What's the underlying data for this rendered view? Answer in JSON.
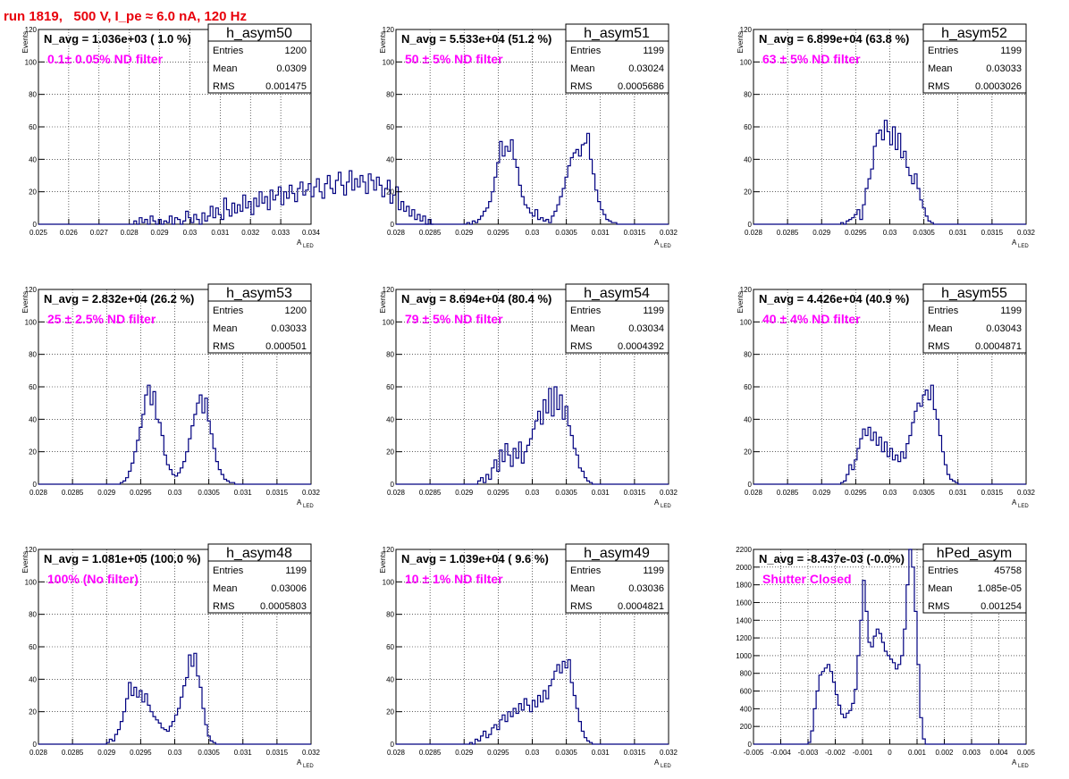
{
  "title": "run 1819,   500 V, I_pe ≈ 6.0 nA, 120 Hz",
  "colors": {
    "line": "#000080",
    "annotation": "#ff00ff",
    "title": "#e8000b",
    "grid": "#000000"
  },
  "chart_data": [
    {
      "type": "bar",
      "name": "h_asym50",
      "header": "N_avg = 1.036e+03 ( 1.0 %)",
      "annotation": "0.1± 0.05% ND filter",
      "stats": {
        "entries": "1200",
        "mean": "0.0309",
        "rms": "0.001475"
      },
      "xlim": [
        0.025,
        0.034
      ],
      "ylim": [
        0,
        120
      ],
      "xticks": [
        "0.025",
        "0.026",
        "0.027",
        "0.028",
        "0.029",
        "0.03",
        "0.031",
        "0.032",
        "0.033",
        "0.034"
      ],
      "yticks": [
        "0",
        "20",
        "40",
        "60",
        "80",
        "100",
        "120"
      ],
      "ylabel": "Events",
      "xlabel": "A",
      "xlabel_sub": "LED",
      "binning": {
        "start": 0.025,
        "width": 9e-05
      },
      "values": [
        0,
        0,
        0,
        0,
        0,
        0,
        0,
        0,
        0,
        0,
        0,
        0,
        0,
        0,
        0,
        0,
        0,
        0,
        0,
        0,
        0,
        0,
        0,
        0,
        0,
        0,
        0,
        0,
        0,
        0,
        0,
        0,
        0,
        0,
        0,
        2,
        0,
        4,
        1,
        3,
        0,
        5,
        2,
        0,
        3,
        0,
        2,
        1,
        5,
        0,
        4,
        3,
        0,
        2,
        8,
        4,
        1,
        6,
        3,
        0,
        7,
        2,
        5,
        11,
        4,
        10,
        6,
        3,
        16,
        9,
        5,
        13,
        7,
        12,
        8,
        18,
        10,
        14,
        6,
        16,
        11,
        20,
        13,
        17,
        9,
        21,
        15,
        18,
        23,
        12,
        20,
        16,
        24,
        19,
        14,
        22,
        26,
        18,
        21,
        25,
        17,
        23,
        28,
        20,
        16,
        25,
        30,
        22,
        19,
        27,
        32,
        24,
        18,
        26,
        33,
        21,
        28,
        23,
        30,
        26,
        19,
        31,
        27,
        21,
        29,
        24,
        17,
        22,
        27,
        13,
        18,
        23,
        9,
        14,
        8,
        11,
        5,
        9,
        3,
        6,
        2,
        5,
        0,
        3,
        0
      ]
    },
    {
      "type": "bar",
      "name": "h_asym51",
      "header": "N_avg = 5.533e+04 (51.2 %)",
      "annotation": "50 ± 5% ND filter",
      "stats": {
        "entries": "1199",
        "mean": "0.03024",
        "rms": "0.0005686"
      },
      "xlim": [
        0.028,
        0.032
      ],
      "ylim": [
        0,
        120
      ],
      "xticks": [
        "0.028",
        "0.0285",
        "0.029",
        "0.0295",
        "0.03",
        "0.0305",
        "0.031",
        "0.0315",
        "0.032"
      ],
      "yticks": [
        "0",
        "20",
        "40",
        "60",
        "80",
        "100",
        "120"
      ],
      "ylabel": "Events",
      "xlabel": "A",
      "xlabel_sub": "LED",
      "binning": {
        "start": 0.028,
        "width": 4e-05
      },
      "values": [
        0,
        0,
        0,
        0,
        0,
        0,
        0,
        0,
        0,
        0,
        0,
        0,
        0,
        0,
        0,
        0,
        0,
        0,
        0,
        0,
        0,
        0,
        0,
        0,
        0,
        0,
        1,
        0,
        2,
        1,
        3,
        5,
        8,
        10,
        14,
        20,
        29,
        38,
        51,
        42,
        48,
        45,
        52,
        40,
        35,
        24,
        17,
        12,
        10,
        7,
        5,
        9,
        3,
        4,
        2,
        3,
        1,
        5,
        8,
        12,
        17,
        22,
        29,
        36,
        41,
        44,
        46,
        42,
        49,
        50,
        56,
        40,
        31,
        21,
        14,
        9,
        6,
        3,
        2,
        1,
        1,
        0,
        0,
        0,
        0,
        0,
        0,
        0,
        0,
        0,
        0,
        0,
        0,
        0,
        0,
        0,
        0,
        0,
        0,
        0
      ]
    },
    {
      "type": "bar",
      "name": "h_asym52",
      "header": "N_avg = 6.899e+04 (63.8 %)",
      "annotation": "63 ± 5% ND filter",
      "stats": {
        "entries": "1199",
        "mean": "0.03033",
        "rms": "0.0003026"
      },
      "xlim": [
        0.028,
        0.032
      ],
      "ylim": [
        0,
        120
      ],
      "xticks": [
        "0.028",
        "0.0285",
        "0.029",
        "0.0295",
        "0.03",
        "0.0305",
        "0.031",
        "0.0315",
        "0.032"
      ],
      "yticks": [
        "0",
        "20",
        "40",
        "60",
        "80",
        "100",
        "120"
      ],
      "ylabel": "Events",
      "xlabel": "A",
      "xlabel_sub": "LED",
      "binning": {
        "start": 0.028,
        "width": 4e-05
      },
      "values": [
        0,
        0,
        0,
        0,
        0,
        0,
        0,
        0,
        0,
        0,
        0,
        0,
        0,
        0,
        0,
        0,
        0,
        0,
        0,
        0,
        0,
        0,
        0,
        0,
        0,
        0,
        0,
        0,
        0,
        0,
        0,
        0,
        1,
        0,
        2,
        3,
        4,
        6,
        9,
        3,
        12,
        22,
        28,
        34,
        48,
        56,
        58,
        52,
        64,
        57,
        49,
        60,
        46,
        56,
        41,
        45,
        35,
        30,
        25,
        31,
        22,
        15,
        10,
        5,
        2,
        1,
        0,
        0,
        0,
        0,
        0,
        0,
        0,
        0,
        0,
        0,
        0,
        0,
        0,
        0,
        0,
        0,
        0,
        0,
        0,
        0,
        0,
        0,
        0,
        0,
        0,
        0,
        0,
        0,
        0,
        0,
        0,
        0,
        0,
        0
      ]
    },
    {
      "type": "bar",
      "name": "h_asym53",
      "header": "N_avg = 2.832e+04 (26.2 %)",
      "annotation": "25 ± 2.5% ND filter",
      "stats": {
        "entries": "1200",
        "mean": "0.03033",
        "rms": "0.000501"
      },
      "xlim": [
        0.028,
        0.032
      ],
      "ylim": [
        0,
        120
      ],
      "xticks": [
        "0.028",
        "0.0285",
        "0.029",
        "0.0295",
        "0.03",
        "0.0305",
        "0.031",
        "0.0315",
        "0.032"
      ],
      "yticks": [
        "0",
        "20",
        "40",
        "60",
        "80",
        "100",
        "120"
      ],
      "ylabel": "Events",
      "xlabel": "A",
      "xlabel_sub": "LED",
      "binning": {
        "start": 0.028,
        "width": 4e-05
      },
      "values": [
        0,
        0,
        0,
        0,
        0,
        0,
        0,
        0,
        0,
        0,
        0,
        0,
        0,
        0,
        0,
        0,
        0,
        0,
        0,
        0,
        0,
        0,
        0,
        0,
        0,
        0,
        0,
        0,
        0,
        0,
        1,
        2,
        4,
        8,
        13,
        20,
        27,
        35,
        43,
        55,
        61,
        49,
        57,
        40,
        38,
        30,
        18,
        12,
        9,
        6,
        5,
        7,
        10,
        14,
        20,
        28,
        36,
        43,
        50,
        55,
        44,
        53,
        39,
        31,
        22,
        14,
        9,
        6,
        3,
        2,
        1,
        1,
        0,
        0,
        0,
        0,
        0,
        0,
        0,
        0,
        0,
        0,
        0,
        0,
        0,
        0,
        0,
        0,
        0,
        0,
        0,
        0,
        0,
        0,
        0,
        0,
        0,
        0,
        0,
        0
      ]
    },
    {
      "type": "bar",
      "name": "h_asym54",
      "header": "N_avg = 8.694e+04 (80.4 %)",
      "annotation": "79 ± 5% ND filter",
      "stats": {
        "entries": "1199",
        "mean": "0.03034",
        "rms": "0.0004392"
      },
      "xlim": [
        0.028,
        0.032
      ],
      "ylim": [
        0,
        120
      ],
      "xticks": [
        "0.028",
        "0.0285",
        "0.029",
        "0.0295",
        "0.03",
        "0.0305",
        "0.031",
        "0.0315",
        "0.032"
      ],
      "yticks": [
        "0",
        "20",
        "40",
        "60",
        "80",
        "100",
        "120"
      ],
      "ylabel": "Events",
      "xlabel": "A",
      "xlabel_sub": "LED",
      "binning": {
        "start": 0.028,
        "width": 4e-05
      },
      "values": [
        0,
        0,
        0,
        0,
        0,
        0,
        0,
        0,
        0,
        0,
        0,
        0,
        0,
        0,
        0,
        0,
        0,
        0,
        0,
        0,
        0,
        0,
        0,
        0,
        0,
        0,
        0,
        0,
        0,
        0,
        2,
        4,
        1,
        6,
        3,
        10,
        15,
        8,
        21,
        14,
        25,
        18,
        11,
        22,
        16,
        26,
        13,
        20,
        24,
        28,
        34,
        39,
        45,
        37,
        52,
        44,
        59,
        42,
        60,
        46,
        55,
        40,
        48,
        36,
        30,
        22,
        18,
        10,
        8,
        4,
        2,
        1,
        0,
        0,
        0,
        0,
        0,
        0,
        0,
        0,
        0,
        0,
        0,
        0,
        0,
        0,
        0,
        0,
        0,
        0,
        0,
        0,
        0,
        0,
        0,
        0,
        0,
        0,
        0,
        0
      ]
    },
    {
      "type": "bar",
      "name": "h_asym55",
      "header": "N_avg = 4.426e+04 (40.9 %)",
      "annotation": "40 ± 4% ND filter",
      "stats": {
        "entries": "1199",
        "mean": "0.03043",
        "rms": "0.0004871"
      },
      "xlim": [
        0.028,
        0.032
      ],
      "ylim": [
        0,
        120
      ],
      "xticks": [
        "0.028",
        "0.0285",
        "0.029",
        "0.0295",
        "0.03",
        "0.0305",
        "0.031",
        "0.0315",
        "0.032"
      ],
      "yticks": [
        "0",
        "20",
        "40",
        "60",
        "80",
        "100",
        "120"
      ],
      "ylabel": "Events",
      "xlabel": "A",
      "xlabel_sub": "LED",
      "binning": {
        "start": 0.028,
        "width": 4e-05
      },
      "values": [
        0,
        0,
        0,
        0,
        0,
        0,
        0,
        0,
        0,
        0,
        0,
        0,
        0,
        0,
        0,
        0,
        0,
        0,
        0,
        0,
        0,
        0,
        0,
        0,
        0,
        0,
        0,
        0,
        0,
        0,
        0,
        0,
        1,
        2,
        6,
        12,
        9,
        15,
        22,
        28,
        34,
        30,
        35,
        27,
        32,
        24,
        29,
        20,
        26,
        17,
        22,
        15,
        18,
        14,
        20,
        16,
        25,
        30,
        38,
        45,
        50,
        48,
        55,
        58,
        52,
        61,
        46,
        40,
        30,
        20,
        12,
        6,
        3,
        2,
        1,
        0,
        0,
        0,
        0,
        0,
        0,
        0,
        0,
        0,
        0,
        0,
        0,
        0,
        0,
        0,
        0,
        0,
        0,
        0,
        0,
        0,
        0,
        0,
        0,
        0
      ]
    },
    {
      "type": "bar",
      "name": "h_asym48",
      "header": "N_avg = 1.081e+05 (100.0 %)",
      "annotation": "100% (No filter)",
      "stats": {
        "entries": "1199",
        "mean": "0.03006",
        "rms": "0.0005803"
      },
      "xlim": [
        0.028,
        0.032
      ],
      "ylim": [
        0,
        120
      ],
      "xticks": [
        "0.028",
        "0.0285",
        "0.029",
        "0.0295",
        "0.03",
        "0.0305",
        "0.031",
        "0.0315",
        "0.032"
      ],
      "yticks": [
        "0",
        "20",
        "40",
        "60",
        "80",
        "100",
        "120"
      ],
      "ylabel": "Events",
      "xlabel": "A",
      "xlabel_sub": "LED",
      "binning": {
        "start": 0.028,
        "width": 4e-05
      },
      "values": [
        0,
        0,
        0,
        0,
        0,
        0,
        0,
        0,
        0,
        0,
        0,
        0,
        0,
        0,
        0,
        0,
        0,
        0,
        0,
        0,
        0,
        0,
        0,
        0,
        0,
        1,
        3,
        2,
        6,
        9,
        14,
        20,
        28,
        38,
        30,
        35,
        29,
        33,
        26,
        31,
        24,
        20,
        17,
        15,
        13,
        10,
        9,
        8,
        11,
        14,
        18,
        22,
        29,
        36,
        41,
        55,
        48,
        56,
        42,
        35,
        22,
        12,
        5,
        2,
        1,
        0,
        0,
        0,
        0,
        0,
        0,
        0,
        0,
        0,
        0,
        0,
        0,
        0,
        0,
        0,
        0,
        0,
        0,
        0,
        0,
        0,
        0,
        0,
        0,
        0,
        0,
        0,
        0,
        0,
        0,
        0,
        0,
        0,
        0,
        0
      ]
    },
    {
      "type": "bar",
      "name": "h_asym49",
      "header": "N_avg = 1.039e+04 ( 9.6 %)",
      "annotation": "10 ± 1% ND filter",
      "stats": {
        "entries": "1199",
        "mean": "0.03036",
        "rms": "0.0004821"
      },
      "xlim": [
        0.028,
        0.032
      ],
      "ylim": [
        0,
        120
      ],
      "xticks": [
        "0.028",
        "0.0285",
        "0.029",
        "0.0295",
        "0.03",
        "0.0305",
        "0.031",
        "0.0315",
        "0.032"
      ],
      "yticks": [
        "0",
        "20",
        "40",
        "60",
        "80",
        "100",
        "120"
      ],
      "ylabel": "Events",
      "xlabel": "A",
      "xlabel_sub": "LED",
      "binning": {
        "start": 0.028,
        "width": 4e-05
      },
      "values": [
        0,
        0,
        0,
        0,
        0,
        0,
        0,
        0,
        0,
        0,
        0,
        0,
        0,
        0,
        0,
        0,
        0,
        0,
        0,
        0,
        0,
        0,
        0,
        0,
        0,
        0,
        0,
        1,
        0,
        3,
        2,
        5,
        8,
        4,
        6,
        10,
        12,
        9,
        15,
        18,
        14,
        20,
        17,
        22,
        19,
        25,
        21,
        28,
        24,
        20,
        27,
        23,
        30,
        26,
        33,
        28,
        36,
        40,
        45,
        49,
        44,
        51,
        47,
        52,
        38,
        30,
        22,
        14,
        8,
        4,
        2,
        1,
        0,
        0,
        0,
        0,
        0,
        0,
        0,
        0,
        0,
        0,
        0,
        0,
        0,
        0,
        0,
        0,
        0,
        0,
        0,
        0,
        0,
        0,
        0,
        0,
        0,
        0,
        0,
        0
      ]
    },
    {
      "type": "bar",
      "name": "hPed_asym",
      "header": "N_avg = -8.437e-03 (-0.0%)",
      "annotation": "Shutter Closed",
      "stats": {
        "entries": "45758",
        "mean": "1.085e-05",
        "rms": "0.001254"
      },
      "xlim": [
        -0.005,
        0.005
      ],
      "ylim": [
        0,
        2200
      ],
      "xticks": [
        "-0.005",
        "-0.004",
        "-0.003",
        "-0.002",
        "-0.001",
        "0",
        "0.001",
        "0.002",
        "0.003",
        "0.004",
        "0.005"
      ],
      "yticks": [
        "0",
        "200",
        "400",
        "600",
        "800",
        "1000",
        "1200",
        "1400",
        "1600",
        "1800",
        "2000",
        "2200"
      ],
      "ylabel": "",
      "xlabel": "A",
      "xlabel_sub": "LED",
      "binning": {
        "start": -0.005,
        "width": 0.0001
      },
      "values": [
        0,
        0,
        0,
        0,
        0,
        0,
        0,
        0,
        0,
        0,
        0,
        0,
        0,
        0,
        0,
        0,
        0,
        0,
        0,
        0,
        20,
        150,
        400,
        600,
        780,
        820,
        860,
        900,
        820,
        700,
        560,
        440,
        340,
        300,
        350,
        380,
        460,
        620,
        1000,
        1400,
        1850,
        1500,
        1150,
        1100,
        1220,
        1300,
        1250,
        1150,
        1050,
        1000,
        960,
        920,
        850,
        900,
        1000,
        1300,
        1800,
        2200,
        2000,
        1500,
        900,
        300,
        60,
        0,
        0,
        0,
        0,
        0,
        0,
        0,
        0,
        0,
        0,
        0,
        0,
        0,
        0,
        0,
        0,
        0,
        0,
        0,
        0,
        0,
        0,
        0,
        0,
        0,
        0,
        0,
        0,
        0,
        0,
        0,
        0,
        0,
        0,
        0,
        0,
        0
      ]
    }
  ]
}
